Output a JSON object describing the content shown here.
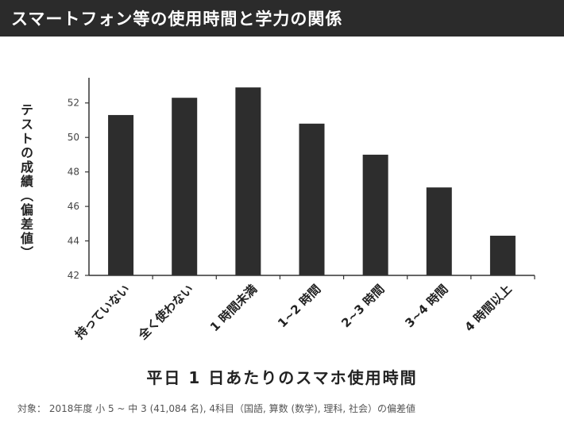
{
  "header": {
    "title": "スマートフォン等の使用時間と学力の関係"
  },
  "footnote": "対象： 2018年度 小 5 ~ 中 3 (41,084 名), 4科目（国語, 算数 (数学), 理科, 社会）の偏差値",
  "chart_data": {
    "type": "bar",
    "xlabel": "平日 1 日あたりのスマホ使用時間",
    "ylabel": "テストの成績（偏差値）",
    "categories": [
      "持っていない",
      "全く使わない",
      "1 時間未満",
      "1~2 時間",
      "2~3 時間",
      "3~4 時間",
      "4 時間以上"
    ],
    "values": [
      51.3,
      52.3,
      52.9,
      50.8,
      49.0,
      47.1,
      44.3
    ],
    "yticks": [
      "42",
      "44",
      "46",
      "48",
      "50",
      "52"
    ],
    "ylim": [
      42,
      53
    ],
    "bar_color": "#2d2d2d",
    "grid": false
  }
}
